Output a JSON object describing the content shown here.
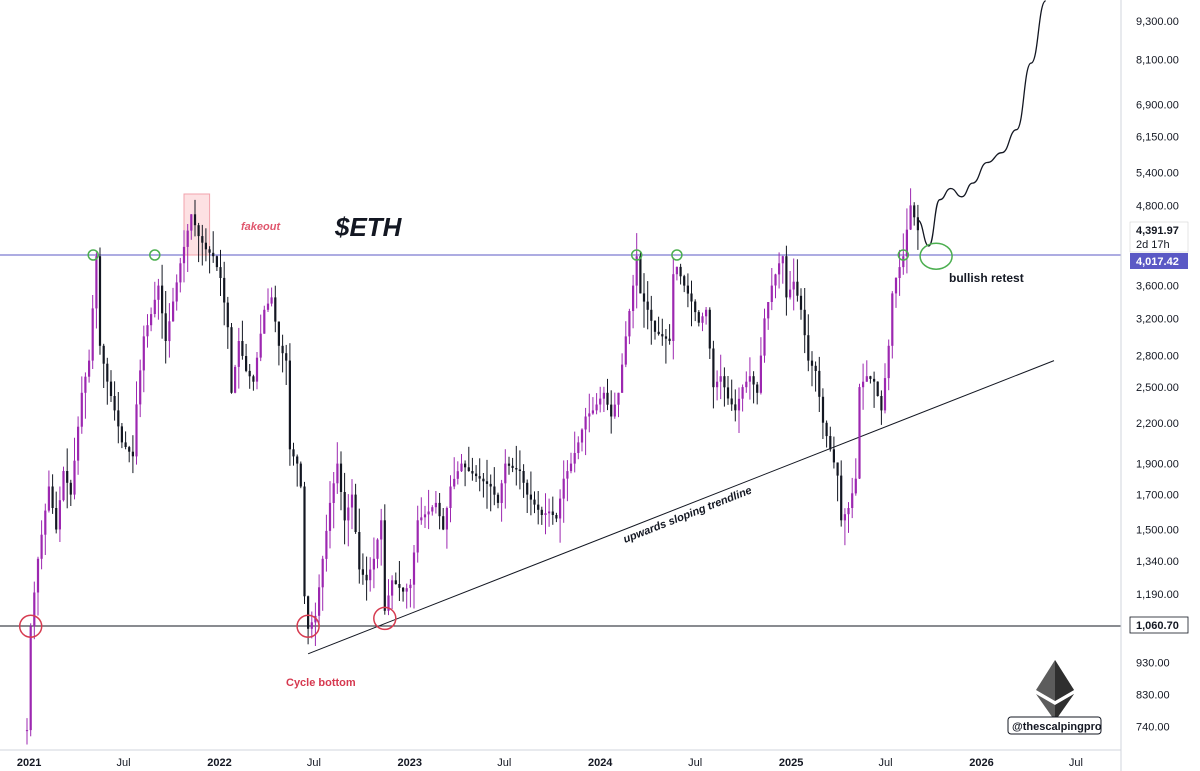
{
  "chart_data": {
    "type": "candlestick",
    "ticker": "$ETH",
    "y_scale": "log",
    "ylim": [
      700,
      10100
    ],
    "y_ticks": [
      9300,
      8100,
      6900,
      6150,
      5400,
      4800,
      3600,
      3200,
      2800,
      2500,
      2200,
      1900,
      1700,
      1500,
      1340,
      1190,
      930,
      830,
      740
    ],
    "y_tick_labels": [
      "9,300.00",
      "8,100.00",
      "6,900.00",
      "6,150.00",
      "5,400.00",
      "4,800.00",
      "3,600.00",
      "3,200.00",
      "2,800.00",
      "2,500.00",
      "2,200.00",
      "1,900.00",
      "1,700.00",
      "1,500.00",
      "1,340.00",
      "1,190.00",
      "930.00",
      "830.00",
      "740.00"
    ],
    "xlim": [
      "2020-12-28",
      "2026-08-20"
    ],
    "x_ticks": [
      {
        "date": "2021-01-01",
        "label": "2021",
        "year": true
      },
      {
        "date": "2021-07-01",
        "label": "Jul",
        "year": false
      },
      {
        "date": "2022-01-01",
        "label": "2022",
        "year": true
      },
      {
        "date": "2022-07-01",
        "label": "Jul",
        "year": false
      },
      {
        "date": "2023-01-01",
        "label": "2023",
        "year": true
      },
      {
        "date": "2023-07-01",
        "label": "Jul",
        "year": false
      },
      {
        "date": "2024-01-01",
        "label": "2024",
        "year": true
      },
      {
        "date": "2024-07-01",
        "label": "Jul",
        "year": false
      },
      {
        "date": "2025-01-01",
        "label": "2025",
        "year": true
      },
      {
        "date": "2025-07-01",
        "label": "Jul",
        "year": false
      },
      {
        "date": "2026-01-01",
        "label": "2026",
        "year": true
      },
      {
        "date": "2026-07-01",
        "label": "Jul",
        "year": false
      }
    ],
    "price_keypoints": [
      [
        "2020-12-28",
        730
      ],
      [
        "2021-01-04",
        1060
      ],
      [
        "2021-01-18",
        1350
      ],
      [
        "2021-02-08",
        1750
      ],
      [
        "2021-02-22",
        1500
      ],
      [
        "2021-03-08",
        1850
      ],
      [
        "2021-03-22",
        1700
      ],
      [
        "2021-04-12",
        2450
      ],
      [
        "2021-04-26",
        2750
      ],
      [
        "2021-05-10",
        4000
      ],
      [
        "2021-05-17",
        2900
      ],
      [
        "2021-05-31",
        2550
      ],
      [
        "2021-06-14",
        2300
      ],
      [
        "2021-06-28",
        2050
      ],
      [
        "2021-07-19",
        1950
      ],
      [
        "2021-07-26",
        2350
      ],
      [
        "2021-08-09",
        3000
      ],
      [
        "2021-08-23",
        3250
      ],
      [
        "2021-09-06",
        3600
      ],
      [
        "2021-09-20",
        2950
      ],
      [
        "2021-10-04",
        3400
      ],
      [
        "2021-10-18",
        3900
      ],
      [
        "2021-11-08",
        4650
      ],
      [
        "2021-11-22",
        4300
      ],
      [
        "2021-12-06",
        4100
      ],
      [
        "2021-12-20",
        4000
      ],
      [
        "2022-01-03",
        3700
      ],
      [
        "2022-01-17",
        3100
      ],
      [
        "2022-01-24",
        2450
      ],
      [
        "2022-02-07",
        2950
      ],
      [
        "2022-02-21",
        2650
      ],
      [
        "2022-03-07",
        2550
      ],
      [
        "2022-03-28",
        3300
      ],
      [
        "2022-04-11",
        3450
      ],
      [
        "2022-04-25",
        2900
      ],
      [
        "2022-05-09",
        2750
      ],
      [
        "2022-05-16",
        2000
      ],
      [
        "2022-05-30",
        1900
      ],
      [
        "2022-06-06",
        1750
      ],
      [
        "2022-06-13",
        1180
      ],
      [
        "2022-06-20",
        1050
      ],
      [
        "2022-07-04",
        1100
      ],
      [
        "2022-07-18",
        1350
      ],
      [
        "2022-08-01",
        1650
      ],
      [
        "2022-08-15",
        1900
      ],
      [
        "2022-08-29",
        1550
      ],
      [
        "2022-09-12",
        1700
      ],
      [
        "2022-09-26",
        1300
      ],
      [
        "2022-10-10",
        1250
      ],
      [
        "2022-10-24",
        1350
      ],
      [
        "2022-11-07",
        1550
      ],
      [
        "2022-11-14",
        1120
      ],
      [
        "2022-11-28",
        1250
      ],
      [
        "2022-12-19",
        1200
      ],
      [
        "2023-01-02",
        1230
      ],
      [
        "2023-01-16",
        1550
      ],
      [
        "2023-02-06",
        1600
      ],
      [
        "2023-02-20",
        1650
      ],
      [
        "2023-03-06",
        1500
      ],
      [
        "2023-03-20",
        1750
      ],
      [
        "2023-04-10",
        1900
      ],
      [
        "2023-04-24",
        1850
      ],
      [
        "2023-05-15",
        1800
      ],
      [
        "2023-06-05",
        1750
      ],
      [
        "2023-06-19",
        1650
      ],
      [
        "2023-07-03",
        1900
      ],
      [
        "2023-07-17",
        1870
      ],
      [
        "2023-07-31",
        1850
      ],
      [
        "2023-08-14",
        1700
      ],
      [
        "2023-08-28",
        1640
      ],
      [
        "2023-09-11",
        1580
      ],
      [
        "2023-09-25",
        1600
      ],
      [
        "2023-10-09",
        1560
      ],
      [
        "2023-10-23",
        1800
      ],
      [
        "2023-11-06",
        1900
      ],
      [
        "2023-11-20",
        2050
      ],
      [
        "2023-12-04",
        2250
      ],
      [
        "2023-12-18",
        2300
      ],
      [
        "2024-01-08",
        2450
      ],
      [
        "2024-01-22",
        2250
      ],
      [
        "2024-02-05",
        2450
      ],
      [
        "2024-02-19",
        3000
      ],
      [
        "2024-03-04",
        3600
      ],
      [
        "2024-03-11",
        4000
      ],
      [
        "2024-03-18",
        3500
      ],
      [
        "2024-04-01",
        3300
      ],
      [
        "2024-04-15",
        3050
      ],
      [
        "2024-04-29",
        3000
      ],
      [
        "2024-05-13",
        2950
      ],
      [
        "2024-05-20",
        3750
      ],
      [
        "2024-05-27",
        3850
      ],
      [
        "2024-06-10",
        3600
      ],
      [
        "2024-06-24",
        3400
      ],
      [
        "2024-07-08",
        3150
      ],
      [
        "2024-07-22",
        3300
      ],
      [
        "2024-08-05",
        2500
      ],
      [
        "2024-08-19",
        2600
      ],
      [
        "2024-09-02",
        2400
      ],
      [
        "2024-09-16",
        2300
      ],
      [
        "2024-09-30",
        2500
      ],
      [
        "2024-10-14",
        2600
      ],
      [
        "2024-10-28",
        2450
      ],
      [
        "2024-11-11",
        3200
      ],
      [
        "2024-11-25",
        3600
      ],
      [
        "2024-12-09",
        3900
      ],
      [
        "2024-12-16",
        4000
      ],
      [
        "2024-12-23",
        3450
      ],
      [
        "2025-01-06",
        3650
      ],
      [
        "2025-01-20",
        3300
      ],
      [
        "2025-02-03",
        2750
      ],
      [
        "2025-02-17",
        2650
      ],
      [
        "2025-03-03",
        2200
      ],
      [
        "2025-03-17",
        2000
      ],
      [
        "2025-03-31",
        1820
      ],
      [
        "2025-04-07",
        1550
      ],
      [
        "2025-04-21",
        1620
      ],
      [
        "2025-05-05",
        1800
      ],
      [
        "2025-05-12",
        2500
      ],
      [
        "2025-05-26",
        2600
      ],
      [
        "2025-06-09",
        2550
      ],
      [
        "2025-06-23",
        2300
      ],
      [
        "2025-07-07",
        2900
      ],
      [
        "2025-07-14",
        3500
      ],
      [
        "2025-07-21",
        3700
      ],
      [
        "2025-08-04",
        4000
      ],
      [
        "2025-08-11",
        4400
      ],
      [
        "2025-08-18",
        4800
      ],
      [
        "2025-08-25",
        4600
      ],
      [
        "2025-09-01",
        4391.97
      ]
    ],
    "horizontal_levels": [
      {
        "price": 4017.42,
        "label": "4,017.42",
        "color": "#5b59c5"
      },
      {
        "price": 1060.7,
        "label": "1,060.70",
        "color": "#131722"
      }
    ],
    "last_price": {
      "label": "4,391.97",
      "countdown": "2d 17h"
    },
    "trendline": {
      "from": [
        "2022-06-20",
        960
      ],
      "to": [
        "2026-05-20",
        2750
      ],
      "label": "upwards sloping trendline"
    },
    "projection": [
      [
        "2025-09-01",
        4550
      ],
      [
        "2025-09-22",
        4150
      ],
      [
        "2025-10-13",
        4900
      ],
      [
        "2025-11-03",
        5100
      ],
      [
        "2025-11-24",
        4950
      ],
      [
        "2025-12-15",
        5200
      ],
      [
        "2026-01-12",
        5600
      ],
      [
        "2026-02-09",
        5800
      ],
      [
        "2026-03-09",
        6300
      ],
      [
        "2026-04-06",
        8000
      ],
      [
        "2026-05-04",
        10000
      ]
    ],
    "annotations": [
      {
        "text": "fakeout",
        "date": "2021-12-01",
        "price": 4300,
        "color": "#e0566d"
      },
      {
        "text": "Cycle bottom",
        "date": "2022-07-05",
        "price": 860,
        "color": "#d6384f"
      },
      {
        "text": "bullish retest",
        "date": "2025-10-30",
        "price": 3800,
        "color": "#131722"
      }
    ],
    "circles_green": [
      [
        "2021-05-04",
        4017
      ],
      [
        "2021-08-30",
        4017
      ],
      [
        "2024-03-11",
        4017
      ],
      [
        "2024-05-27",
        4017
      ],
      [
        "2025-08-04",
        4017
      ]
    ],
    "circles_red": [
      [
        "2021-01-04",
        1060
      ],
      [
        "2022-06-20",
        1060
      ],
      [
        "2022-11-14",
        1090
      ]
    ],
    "retest_circle": [
      "2025-10-06",
      4000
    ],
    "fakeout_box": {
      "from": [
        "2021-10-25",
        4017
      ],
      "to": [
        "2021-12-13",
        5000
      ]
    },
    "colors": {
      "up": "#9c27b0",
      "down": "#131722",
      "level": "#5b59c5",
      "green_circle": "#4caf50",
      "red_circle": "#d63b50"
    }
  },
  "title": "$ETH",
  "watermark": {
    "handle": "@thescalpingpro",
    "logo": "ethereum-logo-icon"
  }
}
